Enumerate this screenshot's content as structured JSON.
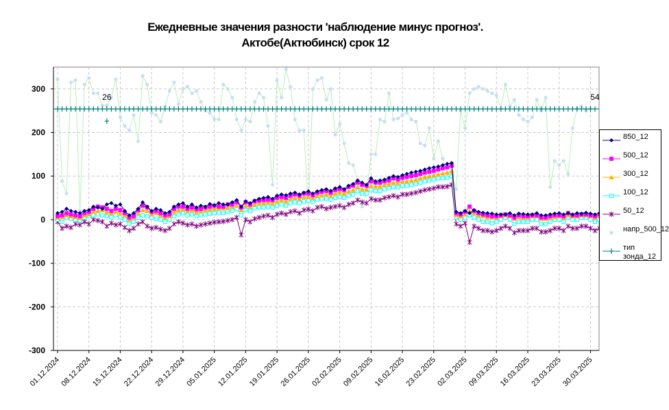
{
  "chart_data": {
    "type": "line",
    "title_line1": "Ежедневные значения разности 'наблюдение минус прогноз'.",
    "title_line2": "Актобе(Актюбинск)    срок 12",
    "xlabel": "",
    "ylabel": "",
    "ylim": [
      -300,
      350
    ],
    "yticks": [
      -300,
      -200,
      -100,
      0,
      100,
      200,
      300
    ],
    "x_start": "01.12.2024",
    "x_end": "31.03.2025",
    "x_tick_labels": [
      "01.12.2024",
      "08.12.2024",
      "15.12.2024",
      "22.12.2024",
      "29.12.2024",
      "05.01.2025",
      "12.01.2025",
      "19.01.2025",
      "26.01.2025",
      "02.02.2025",
      "09.02.2025",
      "16.02.2025",
      "23.02.2025",
      "02.03.2025",
      "09.03.2025",
      "16.03.2025",
      "23.03.2025",
      "30.03.2025"
    ],
    "grid": true,
    "legend_position": "right",
    "annotations": [
      {
        "label": "26",
        "day": 11
      },
      {
        "label": "54",
        "day": 120
      }
    ],
    "series": [
      {
        "name": "850_12",
        "color": "#000080",
        "marker": "diamond",
        "values": [
          15,
          18,
          25,
          20,
          18,
          15,
          20,
          22,
          30,
          28,
          25,
          35,
          38,
          32,
          35,
          20,
          10,
          15,
          25,
          40,
          30,
          20,
          25,
          22,
          15,
          18,
          30,
          35,
          38,
          30,
          35,
          28,
          32,
          30,
          36,
          33,
          38,
          35,
          35,
          40,
          45,
          30,
          42,
          38,
          44,
          48,
          50,
          52,
          48,
          55,
          58,
          56,
          60,
          62,
          58,
          62,
          65,
          60,
          65,
          68,
          70,
          66,
          72,
          75,
          70,
          78,
          82,
          90,
          85,
          80,
          95,
          88,
          90,
          92,
          96,
          100,
          98,
          102,
          105,
          108,
          110,
          112,
          115,
          118,
          120,
          122,
          125,
          128,
          130,
          18,
          15,
          20,
          15,
          22,
          18,
          16,
          15,
          14,
          12,
          12,
          12,
          15,
          10,
          14,
          13,
          12,
          12,
          15,
          10,
          10,
          12,
          14,
          15,
          12,
          15,
          12,
          15,
          14,
          16,
          14,
          12,
          15,
          14,
          16,
          18,
          15,
          14,
          12,
          15,
          14,
          15,
          14,
          15,
          12
        ]
      },
      {
        "name": "500_12",
        "color": "#ff00ff",
        "marker": "square",
        "values": [
          8,
          10,
          15,
          12,
          10,
          8,
          15,
          18,
          25,
          30,
          28,
          25,
          20,
          25,
          22,
          15,
          5,
          8,
          22,
          32,
          28,
          18,
          20,
          15,
          10,
          12,
          25,
          30,
          30,
          25,
          28,
          24,
          25,
          28,
          30,
          32,
          30,
          30,
          35,
          35,
          40,
          28,
          40,
          35,
          42,
          44,
          45,
          46,
          45,
          50,
          52,
          50,
          55,
          58,
          55,
          60,
          60,
          56,
          62,
          64,
          66,
          62,
          68,
          70,
          68,
          75,
          78,
          85,
          80,
          78,
          88,
          85,
          85,
          88,
          90,
          95,
          92,
          96,
          98,
          100,
          102,
          105,
          108,
          110,
          112,
          115,
          118,
          120,
          124,
          15,
          12,
          18,
          30,
          20,
          15,
          12,
          10,
          8,
          8,
          10,
          12,
          10,
          5,
          10,
          8,
          8,
          10,
          10,
          5,
          5,
          8,
          10,
          10,
          8,
          15,
          10,
          10,
          12,
          12,
          10,
          8,
          12,
          10,
          12,
          15,
          12,
          10,
          10,
          12,
          12,
          12,
          12,
          15,
          10
        ]
      },
      {
        "name": "300_12",
        "color": "#ffb000",
        "marker": "triangle",
        "values": [
          5,
          6,
          10,
          8,
          6,
          4,
          10,
          12,
          18,
          20,
          22,
          18,
          15,
          18,
          15,
          10,
          0,
          5,
          15,
          22,
          20,
          12,
          15,
          10,
          5,
          8,
          18,
          22,
          24,
          20,
          22,
          18,
          20,
          22,
          24,
          25,
          26,
          26,
          28,
          30,
          32,
          22,
          32,
          30,
          35,
          38,
          38,
          40,
          38,
          42,
          45,
          42,
          48,
          50,
          48,
          52,
          52,
          50,
          55,
          56,
          58,
          55,
          60,
          62,
          60,
          65,
          68,
          75,
          70,
          70,
          78,
          76,
          76,
          80,
          82,
          85,
          84,
          88,
          88,
          90,
          92,
          95,
          98,
          100,
          102,
          104,
          106,
          108,
          112,
          10,
          8,
          12,
          20,
          15,
          10,
          8,
          6,
          5,
          5,
          8,
          10,
          8,
          2,
          6,
          5,
          5,
          8,
          8,
          2,
          2,
          5,
          6,
          8,
          5,
          10,
          8,
          8,
          10,
          10,
          8,
          5,
          8,
          8,
          10,
          12,
          10,
          8,
          8,
          10,
          10,
          10,
          10,
          12,
          8
        ]
      },
      {
        "name": "100_12",
        "color": "#00ffff",
        "marker": "square-open",
        "values": [
          0,
          -5,
          5,
          2,
          0,
          -2,
          5,
          8,
          10,
          12,
          10,
          8,
          5,
          10,
          5,
          0,
          -10,
          -5,
          5,
          10,
          8,
          5,
          2,
          0,
          -5,
          0,
          8,
          12,
          15,
          10,
          12,
          8,
          10,
          12,
          14,
          15,
          16,
          15,
          18,
          20,
          25,
          10,
          22,
          20,
          26,
          28,
          28,
          30,
          28,
          32,
          35,
          32,
          38,
          40,
          38,
          42,
          44,
          40,
          46,
          48,
          48,
          46,
          50,
          52,
          50,
          55,
          58,
          65,
          60,
          60,
          68,
          66,
          66,
          70,
          72,
          75,
          74,
          78,
          78,
          80,
          82,
          85,
          88,
          90,
          92,
          95,
          95,
          96,
          100,
          5,
          0,
          5,
          10,
          5,
          0,
          -5,
          -5,
          -8,
          -5,
          0,
          5,
          0,
          -10,
          -5,
          -5,
          -5,
          0,
          0,
          -10,
          -10,
          -5,
          0,
          0,
          -5,
          5,
          0,
          0,
          5,
          5,
          0,
          -5,
          0,
          0,
          5,
          8,
          5,
          0,
          0,
          5,
          5,
          5,
          0,
          5,
          0
        ]
      },
      {
        "name": "50_12",
        "color": "#800080",
        "marker": "star",
        "values": [
          -5,
          -20,
          -15,
          -18,
          -10,
          -12,
          -5,
          -10,
          0,
          -2,
          -5,
          -15,
          -8,
          -12,
          -10,
          -18,
          -25,
          -20,
          -10,
          -5,
          -15,
          -20,
          -18,
          -22,
          -25,
          -20,
          -10,
          -5,
          -8,
          -12,
          -10,
          -15,
          -12,
          -10,
          -8,
          -6,
          -5,
          -4,
          -2,
          0,
          5,
          -35,
          0,
          -5,
          2,
          5,
          8,
          10,
          5,
          12,
          15,
          12,
          18,
          20,
          15,
          22,
          24,
          20,
          28,
          30,
          25,
          28,
          30,
          32,
          28,
          35,
          38,
          45,
          40,
          38,
          48,
          45,
          45,
          50,
          52,
          55,
          52,
          58,
          58,
          60,
          62,
          65,
          68,
          70,
          72,
          75,
          75,
          76,
          80,
          -10,
          -15,
          -8,
          -52,
          -15,
          -20,
          -25,
          -25,
          -28,
          -25,
          -20,
          -15,
          -20,
          -30,
          -25,
          -25,
          -25,
          -20,
          -20,
          -28,
          -28,
          -25,
          -20,
          -20,
          -25,
          -15,
          -20,
          -20,
          -15,
          -15,
          -20,
          -25,
          -20,
          -20,
          -15,
          -10,
          -15,
          -20,
          -20,
          -15,
          -15,
          -15,
          -20,
          -15,
          -20
        ]
      },
      {
        "name": "напр_500_12",
        "color": "#c8dff0",
        "marker": "circle",
        "values": [
          322,
          88,
          60,
          315,
          320,
          20,
          310,
          325,
          290,
          290,
          262,
          262,
          280,
          322,
          235,
          215,
          205,
          240,
          180,
          330,
          310,
          245,
          240,
          225,
          260,
          295,
          315,
          265,
          300,
          305,
          290,
          295,
          270,
          250,
          245,
          230,
          230,
          310,
          300,
          280,
          230,
          205,
          230,
          225,
          270,
          290,
          280,
          215,
          80,
          320,
          280,
          345,
          305,
          230,
          205,
          205,
          20,
          300,
          320,
          325,
          275,
          300,
          195,
          220,
          175,
          130,
          125,
          90,
          30,
          60,
          150,
          150,
          230,
          225,
          290,
          230,
          232,
          240,
          245,
          230,
          225,
          175,
          170,
          210,
          140,
          180,
          140,
          105,
          105,
          70,
          250,
          210,
          290,
          300,
          305,
          300,
          295,
          290,
          285,
          255,
          310,
          260,
          275,
          240,
          230,
          225,
          235,
          275,
          250,
          280,
          75,
          135,
          125,
          135,
          105,
          210,
          255,
          260,
          250,
          255
        ]
      },
      {
        "name": "тип\nзонда_12",
        "color": "#008080",
        "marker": "plus",
        "constant": 254
      }
    ]
  }
}
